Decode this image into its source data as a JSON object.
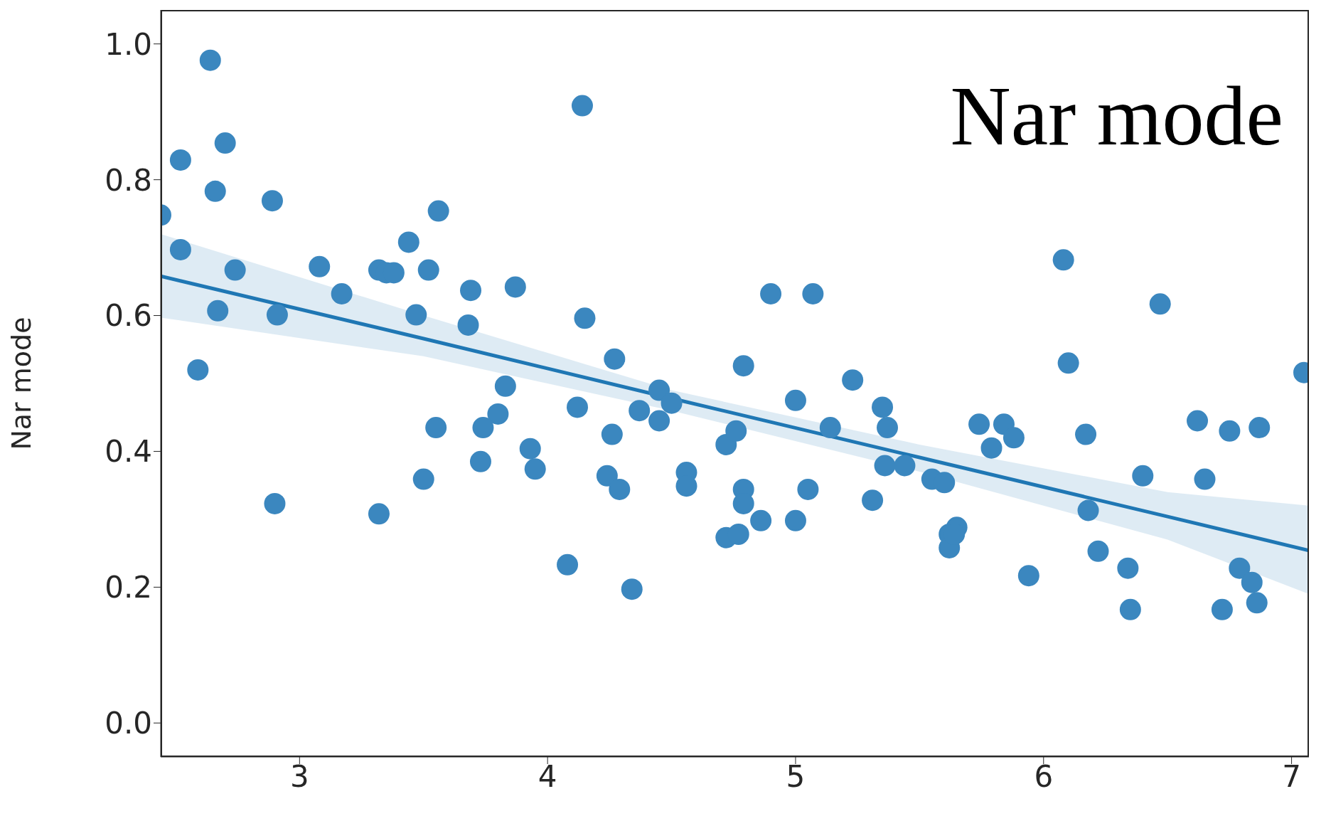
{
  "chart_data": {
    "type": "scatter",
    "ylabel": "Nar mode",
    "annotations": [
      "Nar mode"
    ],
    "xlim": [
      2.44,
      7.07
    ],
    "ylim": [
      -0.05,
      1.05
    ],
    "xticks": [
      3,
      4,
      5,
      6,
      7
    ],
    "yticks": [
      {
        "value": 0,
        "label": "0.0"
      },
      {
        "value": 0.2,
        "label": "0.2"
      },
      {
        "value": 0.4,
        "label": "0.4"
      },
      {
        "value": 0.6,
        "label": "0.6"
      },
      {
        "value": 0.8,
        "label": "0.8"
      },
      {
        "value": 1,
        "label": "1.0"
      }
    ],
    "marker": "circle",
    "series": [
      {
        "color": "#3b87bf",
        "x": [
          2.44,
          2.64,
          2.52,
          2.7,
          2.66,
          2.52,
          2.74,
          2.67,
          2.59,
          2.89,
          2.91,
          2.9,
          3.08,
          3.17,
          3.32,
          3.35,
          3.38,
          3.32,
          3.44,
          3.47,
          3.52,
          3.56,
          3.55,
          3.5,
          3.69,
          3.68,
          3.87,
          3.83,
          3.8,
          3.74,
          3.73,
          3.93,
          3.95,
          4.08,
          4.12,
          4.14,
          4.15,
          4.27,
          4.26,
          4.24,
          4.29,
          4.34,
          4.37,
          4.45,
          4.45,
          4.5,
          4.56,
          4.56,
          4.72,
          4.76,
          4.79,
          4.79,
          4.79,
          4.72,
          4.77,
          4.86,
          4.9,
          5.0,
          5.0,
          5.05,
          5.07,
          5.14,
          5.23,
          5.31,
          5.35,
          5.37,
          5.36,
          5.44,
          5.55,
          5.6,
          5.62,
          5.65,
          5.62,
          5.64,
          5.74,
          5.79,
          5.84,
          5.88,
          5.94,
          6.08,
          6.1,
          6.17,
          6.18,
          6.22,
          6.34,
          6.35,
          6.4,
          6.47,
          6.62,
          6.65,
          6.72,
          6.75,
          6.79,
          6.84,
          6.86,
          6.87,
          7.05
        ],
        "values": [
          0.748,
          0.976,
          0.829,
          0.854,
          0.783,
          0.697,
          0.667,
          0.607,
          0.52,
          0.769,
          0.601,
          0.323,
          0.672,
          0.632,
          0.667,
          0.663,
          0.663,
          0.308,
          0.708,
          0.601,
          0.667,
          0.754,
          0.435,
          0.359,
          0.637,
          0.586,
          0.642,
          0.496,
          0.455,
          0.435,
          0.385,
          0.404,
          0.374,
          0.233,
          0.465,
          0.909,
          0.596,
          0.536,
          0.425,
          0.364,
          0.344,
          0.197,
          0.46,
          0.49,
          0.445,
          0.471,
          0.369,
          0.349,
          0.41,
          0.43,
          0.526,
          0.344,
          0.323,
          0.273,
          0.278,
          0.298,
          0.632,
          0.475,
          0.298,
          0.344,
          0.632,
          0.435,
          0.505,
          0.328,
          0.465,
          0.435,
          0.379,
          0.379,
          0.359,
          0.354,
          0.278,
          0.288,
          0.258,
          0.278,
          0.44,
          0.405,
          0.44,
          0.42,
          0.217,
          0.682,
          0.53,
          0.425,
          0.313,
          0.253,
          0.228,
          0.167,
          0.364,
          0.617,
          0.445,
          0.359,
          0.167,
          0.43,
          0.228,
          0.207,
          0.177,
          0.435,
          0.516
        ]
      },
      {
        "type": "line",
        "marker": "none",
        "color": "#1f77b4",
        "x": [
          2.44,
          3.5,
          4.5,
          5.5,
          6.5,
          7.07
        ],
        "values": [
          0.658,
          0.566,
          0.478,
          0.391,
          0.304,
          0.254
        ],
        "lower": [
          0.597,
          0.54,
          0.46,
          0.37,
          0.27,
          0.19
        ],
        "upper": [
          0.72,
          0.6,
          0.49,
          0.41,
          0.34,
          0.32
        ]
      }
    ]
  }
}
